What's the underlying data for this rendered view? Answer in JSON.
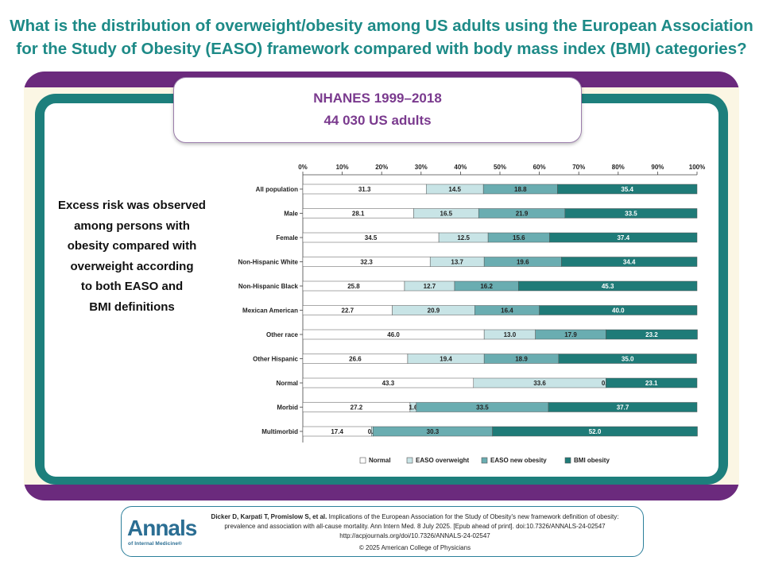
{
  "header": {
    "title_line1": "What is the distribution of overweight/obesity among US adults using the European Association",
    "title_line2": "for the Study of Obesity (EASO) framework compared with body mass index (BMI) categories?"
  },
  "study_box": {
    "line1": "NHANES 1999–2018",
    "line2": "44 030 US adults"
  },
  "key_message": {
    "lines": [
      "Excess risk was observed",
      "among persons with",
      "obesity compared with",
      "overweight according",
      "to both EASO and",
      "BMI definitions"
    ]
  },
  "chart_data": {
    "type": "bar",
    "orientation": "horizontal",
    "stacked": true,
    "xlim": [
      0,
      100
    ],
    "x_ticks": [
      "0%",
      "10%",
      "20%",
      "30%",
      "40%",
      "50%",
      "60%",
      "70%",
      "80%",
      "90%",
      "100%"
    ],
    "categories": [
      "All population",
      "Male",
      "Female",
      "Non-Hispanic White",
      "Non-Hispanic Black",
      "Mexican American",
      "Other race",
      "Other Hispanic",
      "Normal",
      "Morbid",
      "Multimorbid"
    ],
    "series": [
      {
        "name": "Normal",
        "color": "#ffffff",
        "values": [
          31.3,
          28.1,
          34.5,
          32.3,
          25.8,
          22.7,
          46.0,
          26.6,
          43.3,
          27.2,
          17.4
        ],
        "labels": [
          "31.3",
          "28.1",
          "34.5",
          "32.3",
          "25.8",
          "22.7",
          "46.0",
          "26.6",
          "43.3",
          "27.2",
          "17.4"
        ]
      },
      {
        "name": "EASO overweight",
        "color": "#c8e4e6",
        "values": [
          14.5,
          16.5,
          12.5,
          13.7,
          12.7,
          20.9,
          13.0,
          19.4,
          33.6,
          1.6,
          0.4
        ],
        "labels": [
          "14.5",
          "16.5",
          "12.5",
          "13.7",
          "12.7",
          "20.9",
          "13.0",
          "19.4",
          "33.6",
          "1.6",
          "0.4"
        ]
      },
      {
        "name": "EASO new obesity",
        "color": "#6aadb1",
        "values": [
          18.8,
          21.9,
          15.6,
          19.6,
          16.2,
          16.4,
          17.9,
          18.9,
          0.0,
          33.5,
          30.3
        ],
        "labels": [
          "18.8",
          "21.9",
          "15.6",
          "19.6",
          "16.2",
          "16.4",
          "17.9",
          "18.9",
          "0.0",
          "33.5",
          "30.3"
        ]
      },
      {
        "name": "BMI obesity",
        "color": "#1f7b78",
        "values": [
          35.4,
          33.5,
          37.4,
          34.4,
          45.3,
          40.0,
          23.2,
          35.0,
          23.1,
          37.7,
          52.0
        ],
        "labels": [
          "35.4",
          "33.5",
          "37.4",
          "34.4",
          "45.3",
          "40.0",
          "23.2",
          "35.0",
          "23.1",
          "37.7",
          "52.0"
        ]
      }
    ],
    "legend_position": "bottom",
    "grid": false
  },
  "footer": {
    "logo": "Annals",
    "logo_sub": "of Internal Medicine®",
    "authors": "Dicker D, Karpati T, Promislow S, et al.",
    "citation_rest": " Implications of the European Association for the Study of Obesity's new framework definition of obesity:",
    "citation_line2": "prevalence and association with all-cause mortality. Ann Intern Med. 8 July 2025. [Epub ahead of print]. doi:10.7326/ANNALS-24-02547",
    "url": "http://acpjournals.org/doi/10.7326/ANNALS-24-02547",
    "copyright": "© 2025 American College of Physicians"
  }
}
